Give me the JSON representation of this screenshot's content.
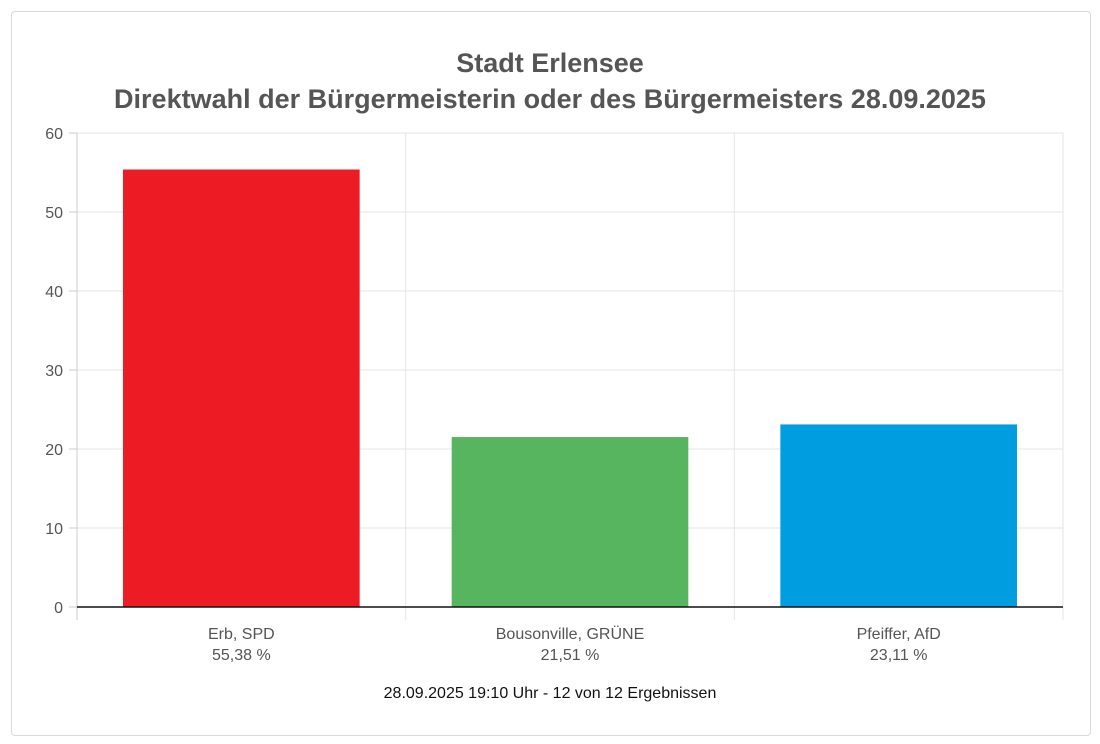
{
  "chart_data": {
    "type": "bar",
    "title": "Stadt Erlensee",
    "subtitle": "Direktwahl der Bürgermeisterin oder des Bürgermeisters 28.09.2025",
    "categories": [
      "Erb, SPD",
      "Bousonville, GRÜNE",
      "Pfeiffer, AfD"
    ],
    "value_labels": [
      "55,38 %",
      "21,51 %",
      "23,11 %"
    ],
    "values": [
      55.38,
      21.51,
      23.11
    ],
    "colors": [
      "#ed1c24",
      "#57b45f",
      "#009ee0"
    ],
    "ylim": [
      0,
      60
    ],
    "yticks": [
      0,
      10,
      20,
      30,
      40,
      50,
      60
    ],
    "grid": true,
    "xlabel": "",
    "ylabel": ""
  },
  "footer": "28.09.2025 19:10 Uhr - 12 von 12 Ergebnissen"
}
